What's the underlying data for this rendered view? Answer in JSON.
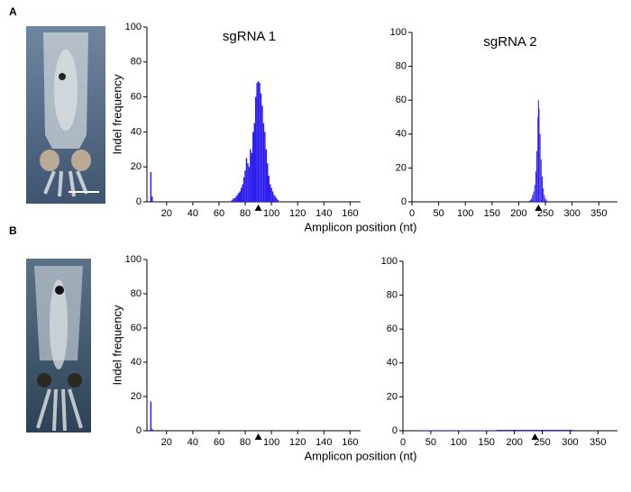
{
  "panel_labels": [
    "A",
    "B"
  ],
  "chart_data": [
    {
      "type": "bar",
      "title": "sgRNA 1",
      "ylabel": "Indel frequency",
      "xlabel": "Amplicon position (nt)",
      "x": [
        8,
        9,
        70,
        71,
        72,
        73,
        74,
        75,
        76,
        77,
        78,
        79,
        80,
        81,
        82,
        83,
        84,
        85,
        86,
        87,
        88,
        89,
        90,
        91,
        92,
        93,
        94,
        95,
        96,
        97,
        98,
        99,
        100,
        101,
        102,
        103,
        104,
        105
      ],
      "values": [
        17,
        3,
        1,
        2,
        2,
        3,
        4,
        5,
        6,
        8,
        10,
        14,
        18,
        25,
        22,
        20,
        30,
        28,
        40,
        45,
        60,
        68,
        69,
        68,
        62,
        55,
        45,
        40,
        30,
        22,
        15,
        10,
        8,
        6,
        4,
        3,
        2,
        1
      ],
      "color": "#2b1bf0",
      "cut_site": 90,
      "xlim": [
        5,
        168
      ],
      "xticks": [
        20,
        40,
        60,
        80,
        100,
        120,
        140,
        160
      ],
      "ylim": [
        0,
        100
      ],
      "yticks": [
        0,
        20,
        40,
        60,
        80,
        100
      ]
    },
    {
      "type": "bar",
      "title": "sgRNA 2",
      "x": [
        220,
        222,
        224,
        226,
        228,
        230,
        232,
        234,
        236,
        237,
        238,
        240,
        242,
        244,
        246,
        248,
        250,
        252
      ],
      "values": [
        0.5,
        1,
        2,
        4,
        6,
        10,
        18,
        30,
        50,
        60,
        55,
        40,
        25,
        15,
        8,
        4,
        2,
        1
      ],
      "color": "#2b1bf0",
      "cut_site": 237,
      "xlim": [
        0,
        385
      ],
      "xticks": [
        0,
        50,
        100,
        150,
        200,
        250,
        300,
        350
      ],
      "ylim": [
        0,
        100
      ],
      "yticks": [
        0,
        20,
        40,
        60,
        80,
        100
      ]
    },
    {
      "type": "bar",
      "ylabel": "Indel frequency",
      "xlabel": "Amplicon position (nt)",
      "x": [
        8,
        9
      ],
      "values": [
        17,
        1
      ],
      "color": "#2b1bf0",
      "cut_site": 90,
      "xlim": [
        5,
        168
      ],
      "xticks": [
        20,
        40,
        60,
        80,
        100,
        120,
        140,
        160
      ],
      "ylim": [
        0,
        100
      ],
      "yticks": [
        0,
        20,
        40,
        60,
        80,
        100
      ]
    },
    {
      "type": "bar",
      "x": [
        100,
        237
      ],
      "values": [
        0.3,
        0.5
      ],
      "color": "#2b1bf0",
      "cut_site": 237,
      "xlim": [
        0,
        385
      ],
      "xticks": [
        0,
        50,
        100,
        150,
        200,
        250,
        300,
        350
      ],
      "ylim": [
        0,
        100
      ],
      "yticks": [
        0,
        20,
        40,
        60,
        80,
        100
      ]
    }
  ]
}
